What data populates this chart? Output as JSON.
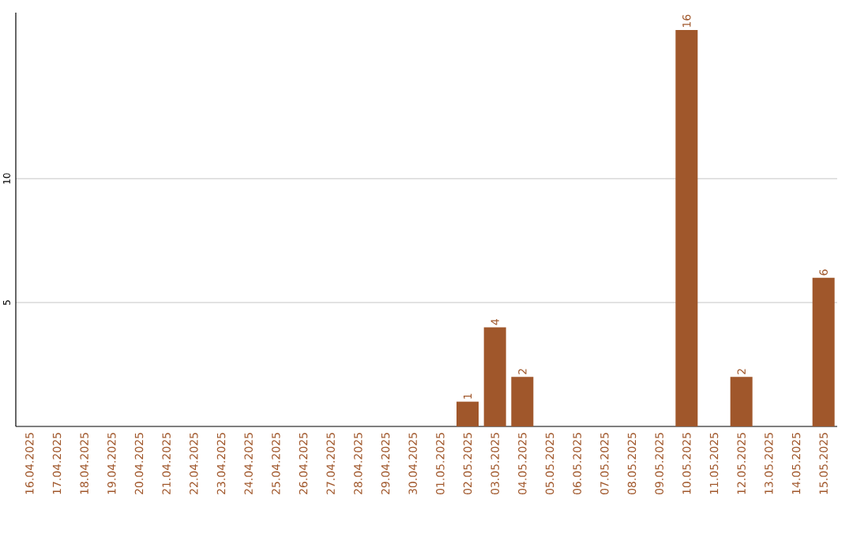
{
  "chart_data": {
    "type": "bar",
    "categories": [
      "16.04.2025",
      "17.04.2025",
      "18.04.2025",
      "19.04.2025",
      "20.04.2025",
      "21.04.2025",
      "22.04.2025",
      "23.04.2025",
      "24.04.2025",
      "25.04.2025",
      "26.04.2025",
      "27.04.2025",
      "28.04.2025",
      "29.04.2025",
      "30.04.2025",
      "01.05.2025",
      "02.05.2025",
      "03.05.2025",
      "04.05.2025",
      "05.05.2025",
      "06.05.2025",
      "07.05.2025",
      "08.05.2025",
      "09.05.2025",
      "10.05.2025",
      "11.05.2025",
      "12.05.2025",
      "13.05.2025",
      "14.05.2025",
      "15.05.2025"
    ],
    "values": [
      0,
      0,
      0,
      0,
      0,
      0,
      0,
      0,
      0,
      0,
      0,
      0,
      0,
      0,
      0,
      0,
      1,
      4,
      2,
      0,
      0,
      0,
      0,
      0,
      16,
      0,
      2,
      0,
      0,
      6
    ],
    "value_labels": [
      null,
      null,
      null,
      null,
      null,
      null,
      null,
      null,
      null,
      null,
      null,
      null,
      null,
      null,
      null,
      null,
      "1",
      "4",
      "2",
      null,
      null,
      null,
      null,
      null,
      "16",
      null,
      "2",
      null,
      null,
      "6"
    ],
    "color": "#a0572b",
    "ylim": [
      0,
      16.7
    ],
    "yticks": [
      5,
      10
    ],
    "grid": "y"
  }
}
